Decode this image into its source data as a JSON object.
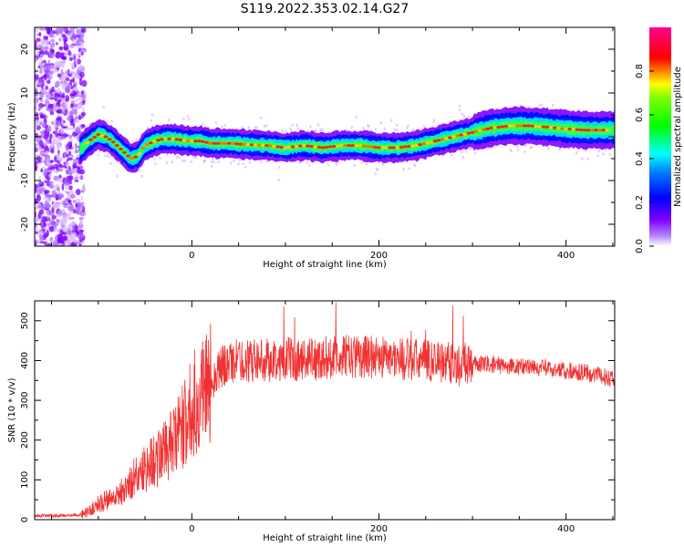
{
  "title": "S119.2022.353.02.14.G27",
  "chart_data": [
    {
      "type": "heatmap",
      "xlabel": "Height of straight line (km)",
      "ylabel": "Frequency (Hz)",
      "xlim": [
        -168,
        452
      ],
      "ylim": [
        -25,
        25
      ],
      "x_ticks": [
        0,
        200,
        400
      ],
      "y_ticks": [
        -20,
        -10,
        0,
        10,
        20
      ],
      "colorbar": {
        "label": "Normalized spectral amplitude",
        "range": [
          0,
          1
        ],
        "ticks": [
          0.0,
          0.2,
          0.4,
          0.6,
          0.8
        ],
        "colors": [
          "#ffffff",
          "#7f00ff",
          "#0000ff",
          "#00ffff",
          "#00ff00",
          "#ffff00",
          "#ff0000",
          "#ff00a0"
        ]
      },
      "noise_region_x": [
        -168,
        -115
      ],
      "doppler_ridge": {
        "x": [
          -120,
          -110,
          -100,
          -92,
          -85,
          -75,
          -65,
          -58,
          -50,
          -40,
          -30,
          -20,
          -10,
          0,
          10,
          20,
          40,
          60,
          80,
          100,
          120,
          140,
          160,
          180,
          200,
          220,
          240,
          260,
          280,
          300,
          320,
          340,
          360,
          380,
          400,
          420,
          452
        ],
        "y": [
          -3,
          -1,
          0.5,
          0,
          -1,
          -3,
          -5,
          -4.5,
          -2,
          -1,
          -0.5,
          -0.5,
          -0.8,
          -1,
          -1,
          -1.5,
          -1.5,
          -1.8,
          -2,
          -2.5,
          -2,
          -2.5,
          -2,
          -2,
          -2.5,
          -2.5,
          -2,
          -1,
          0,
          1,
          2,
          2.5,
          2.5,
          2.2,
          1.8,
          1.5,
          1.5
        ]
      }
    },
    {
      "type": "line",
      "color": "#f03232",
      "xlabel": "Height of straight line (km)",
      "ylabel": "SNR (10 * v/v)",
      "xlim": [
        -168,
        452
      ],
      "ylim": [
        0,
        550
      ],
      "x_ticks": [
        0,
        200,
        400
      ],
      "y_ticks": [
        0,
        100,
        200,
        300,
        400,
        500
      ],
      "series": [
        {
          "x": [
            -168,
            -140,
            -120,
            -110,
            -100,
            -90,
            -80,
            -70,
            -60,
            -50,
            -40,
            -30,
            -20,
            -10,
            0,
            10,
            20,
            30,
            40,
            50,
            60,
            80,
            100,
            120,
            140,
            160,
            180,
            200,
            220,
            240,
            260,
            280,
            300,
            320,
            340,
            360,
            380,
            400,
            420,
            440,
            452
          ],
          "y": [
            10,
            10,
            12,
            20,
            40,
            50,
            60,
            80,
            110,
            130,
            150,
            170,
            190,
            230,
            280,
            320,
            350,
            380,
            395,
            400,
            400,
            400,
            405,
            400,
            405,
            410,
            410,
            410,
            405,
            400,
            400,
            395,
            390,
            390,
            385,
            385,
            380,
            375,
            370,
            360,
            355
          ]
        }
      ]
    }
  ]
}
